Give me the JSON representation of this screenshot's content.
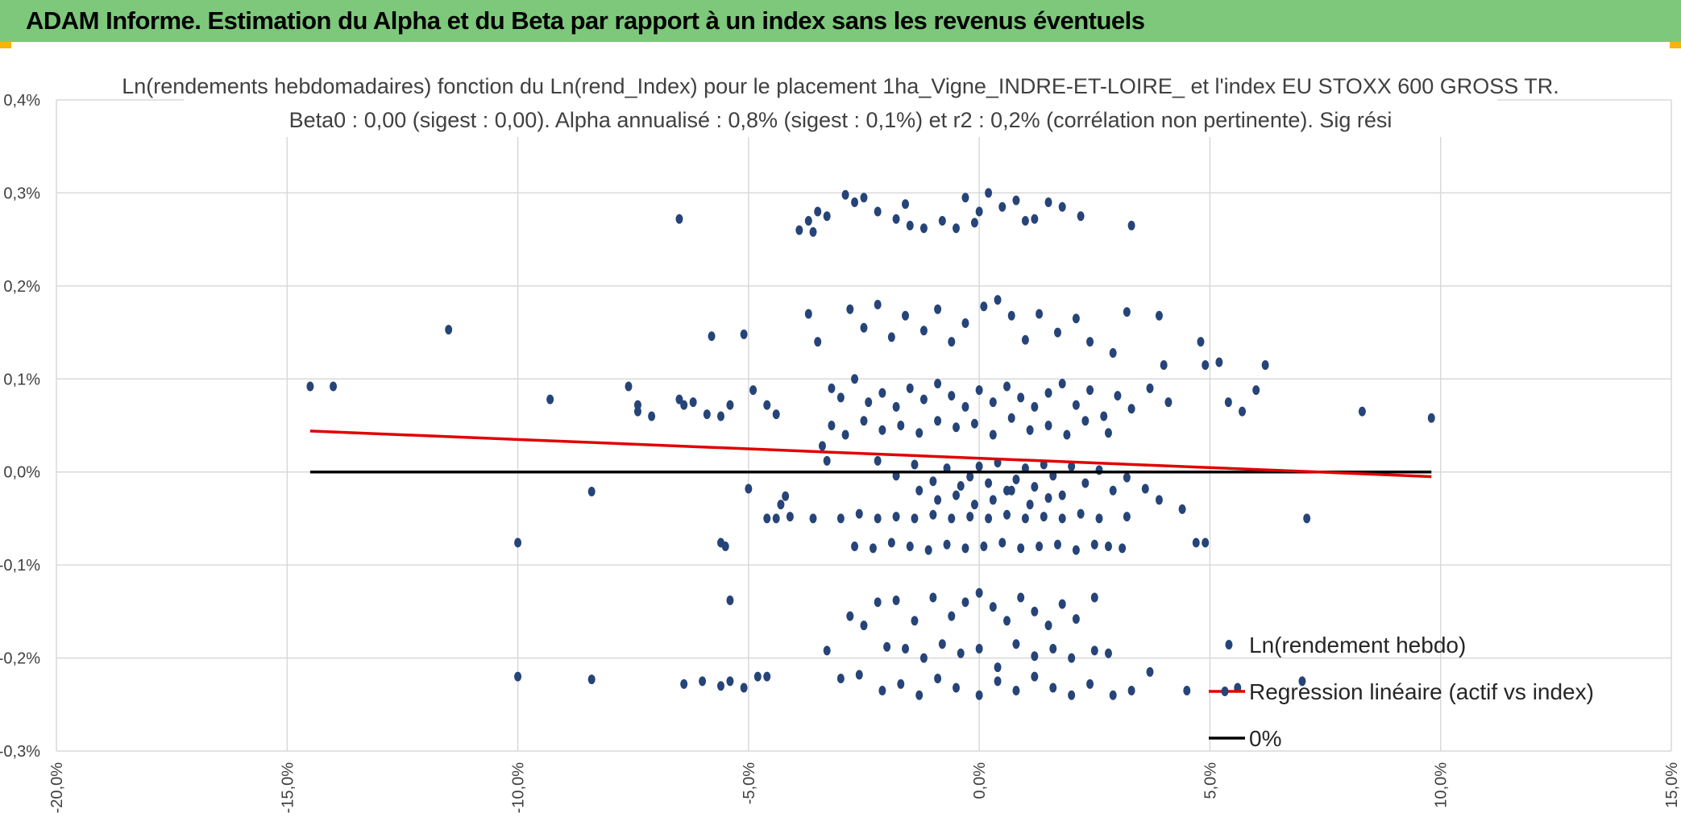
{
  "header": {
    "title": "ADAM Informe. Estimation du Alpha et du Beta par rapport à un index sans les revenus éventuels"
  },
  "colors": {
    "header_bg": "#7dc87b",
    "points": "#264478",
    "regression": "#e00000",
    "zero_line": "#000000",
    "accent_corner": "#f2b705"
  },
  "chart_data": {
    "type": "scatter",
    "title": "Ln(rendements hebdomadaires) fonction du Ln(rend_Index) pour le placement 1ha_Vigne_INDRE-ET-LOIRE_ et l'index EU STOXX 600 GROSS TR.",
    "subtitle": "Beta0 : 0,00 (sigest : 0,00). Alpha annualisé : 0,8% (sigest : 0,1%) et r2 : 0,2% (corrélation non pertinente). Sig rési",
    "xlabel": "",
    "ylabel": "",
    "xlim": [
      -20,
      15
    ],
    "ylim": [
      -0.3,
      0.4
    ],
    "x_ticks": [
      -20,
      -15,
      -10,
      -5,
      0,
      5,
      10,
      15
    ],
    "x_tick_labels": [
      "-20,0%",
      "-15,0%",
      "-10,0%",
      "-5,0%",
      "0,0%",
      "5,0%",
      "10,0%",
      "15,0%"
    ],
    "y_ticks": [
      0.4,
      0.3,
      0.2,
      0.1,
      0.0,
      -0.1,
      -0.2,
      -0.3
    ],
    "y_tick_labels": [
      "0,4%",
      "0,3%",
      "0,2%",
      "0,1%",
      "0,0%",
      "-0,1%",
      "-0,2%",
      "-0,3%"
    ],
    "grid": true,
    "legend_position": "bottom-right",
    "series": [
      {
        "name": "Ln(rendement hebdo)",
        "kind": "scatter",
        "points": [
          [
            -14.5,
            0.092
          ],
          [
            -14.0,
            0.092
          ],
          [
            -11.5,
            0.153
          ],
          [
            -9.3,
            0.078
          ],
          [
            -10.0,
            -0.076
          ],
          [
            -8.4,
            -0.021
          ],
          [
            -8.4,
            -0.223
          ],
          [
            -10.0,
            -0.22
          ],
          [
            -7.6,
            0.092
          ],
          [
            -7.4,
            0.072
          ],
          [
            -7.4,
            0.065
          ],
          [
            -7.1,
            0.06
          ],
          [
            -6.5,
            0.272
          ],
          [
            -6.5,
            0.078
          ],
          [
            -6.4,
            0.072
          ],
          [
            -6.2,
            0.075
          ],
          [
            -5.9,
            0.062
          ],
          [
            -5.8,
            0.146
          ],
          [
            -5.6,
            0.06
          ],
          [
            -5.4,
            0.072
          ],
          [
            -5.1,
            0.148
          ],
          [
            -5.0,
            -0.018
          ],
          [
            -5.6,
            -0.076
          ],
          [
            -5.5,
            -0.08
          ],
          [
            -5.4,
            -0.138
          ],
          [
            -6.4,
            -0.228
          ],
          [
            -6.0,
            -0.225
          ],
          [
            -5.6,
            -0.23
          ],
          [
            -5.4,
            -0.225
          ],
          [
            -5.1,
            -0.232
          ],
          [
            -4.8,
            -0.22
          ],
          [
            -4.6,
            -0.22
          ],
          [
            -4.9,
            0.088
          ],
          [
            -4.6,
            0.072
          ],
          [
            -4.4,
            0.062
          ],
          [
            -4.3,
            -0.035
          ],
          [
            -4.4,
            -0.05
          ],
          [
            -3.9,
            0.26
          ],
          [
            -3.7,
            0.27
          ],
          [
            -3.5,
            0.28
          ],
          [
            -3.6,
            0.258
          ],
          [
            -3.3,
            0.275
          ],
          [
            -2.9,
            0.298
          ],
          [
            -2.7,
            0.29
          ],
          [
            -2.5,
            0.295
          ],
          [
            -2.2,
            0.28
          ],
          [
            -1.8,
            0.272
          ],
          [
            -1.5,
            0.265
          ],
          [
            -1.2,
            0.262
          ],
          [
            -0.8,
            0.27
          ],
          [
            -0.5,
            0.262
          ],
          [
            -0.3,
            0.295
          ],
          [
            0.0,
            0.28
          ],
          [
            0.2,
            0.3
          ],
          [
            0.5,
            0.285
          ],
          [
            0.8,
            0.292
          ],
          [
            1.2,
            0.272
          ],
          [
            1.5,
            0.29
          ],
          [
            1.8,
            0.285
          ],
          [
            2.2,
            0.275
          ],
          [
            3.3,
            0.265
          ],
          [
            -1.6,
            0.288
          ],
          [
            -0.1,
            0.268
          ],
          [
            1.0,
            0.27
          ],
          [
            -3.7,
            0.17
          ],
          [
            -3.5,
            0.14
          ],
          [
            -3.2,
            0.09
          ],
          [
            -2.8,
            0.175
          ],
          [
            -2.5,
            0.155
          ],
          [
            -2.2,
            0.18
          ],
          [
            -1.9,
            0.145
          ],
          [
            -1.6,
            0.168
          ],
          [
            -1.2,
            0.152
          ],
          [
            -0.9,
            0.175
          ],
          [
            -0.6,
            0.14
          ],
          [
            -0.3,
            0.16
          ],
          [
            0.1,
            0.178
          ],
          [
            0.4,
            0.185
          ],
          [
            0.7,
            0.168
          ],
          [
            1.0,
            0.142
          ],
          [
            1.3,
            0.17
          ],
          [
            1.7,
            0.15
          ],
          [
            2.1,
            0.165
          ],
          [
            2.4,
            0.14
          ],
          [
            2.9,
            0.128
          ],
          [
            3.2,
            0.172
          ],
          [
            3.9,
            0.168
          ],
          [
            4.0,
            0.115
          ],
          [
            -3.0,
            0.08
          ],
          [
            -2.7,
            0.1
          ],
          [
            -2.4,
            0.075
          ],
          [
            -2.1,
            0.085
          ],
          [
            -1.8,
            0.07
          ],
          [
            -1.5,
            0.09
          ],
          [
            -1.2,
            0.078
          ],
          [
            -0.9,
            0.095
          ],
          [
            -0.6,
            0.082
          ],
          [
            -0.3,
            0.07
          ],
          [
            0.0,
            0.088
          ],
          [
            0.3,
            0.075
          ],
          [
            0.6,
            0.092
          ],
          [
            0.9,
            0.08
          ],
          [
            1.2,
            0.07
          ],
          [
            1.5,
            0.085
          ],
          [
            1.8,
            0.095
          ],
          [
            2.1,
            0.072
          ],
          [
            2.4,
            0.088
          ],
          [
            2.7,
            0.06
          ],
          [
            3.0,
            0.082
          ],
          [
            3.3,
            0.068
          ],
          [
            3.7,
            0.09
          ],
          [
            4.1,
            0.075
          ],
          [
            -3.2,
            0.05
          ],
          [
            -2.9,
            0.04
          ],
          [
            -2.5,
            0.055
          ],
          [
            -2.1,
            0.045
          ],
          [
            -1.7,
            0.05
          ],
          [
            -1.3,
            0.042
          ],
          [
            -0.9,
            0.055
          ],
          [
            -0.5,
            0.048
          ],
          [
            -0.1,
            0.052
          ],
          [
            0.3,
            0.04
          ],
          [
            0.7,
            0.058
          ],
          [
            1.1,
            0.045
          ],
          [
            1.5,
            0.05
          ],
          [
            1.9,
            0.04
          ],
          [
            2.3,
            0.055
          ],
          [
            2.8,
            0.042
          ],
          [
            -2.2,
            0.012
          ],
          [
            -1.8,
            -0.004
          ],
          [
            -1.4,
            0.008
          ],
          [
            -1.0,
            -0.01
          ],
          [
            -0.7,
            0.004
          ],
          [
            -0.4,
            -0.015
          ],
          [
            -0.2,
            -0.005
          ],
          [
            0.0,
            0.006
          ],
          [
            0.2,
            -0.012
          ],
          [
            0.4,
            0.01
          ],
          [
            0.6,
            -0.02
          ],
          [
            0.8,
            -0.008
          ],
          [
            1.0,
            0.004
          ],
          [
            1.2,
            -0.016
          ],
          [
            1.4,
            0.008
          ],
          [
            1.6,
            -0.004
          ],
          [
            1.8,
            -0.025
          ],
          [
            2.0,
            0.006
          ],
          [
            2.3,
            -0.012
          ],
          [
            2.6,
            0.002
          ],
          [
            2.9,
            -0.02
          ],
          [
            3.2,
            -0.006
          ],
          [
            3.6,
            -0.018
          ],
          [
            3.9,
            -0.03
          ],
          [
            -0.9,
            -0.03
          ],
          [
            -0.5,
            -0.025
          ],
          [
            -0.1,
            -0.035
          ],
          [
            0.3,
            -0.03
          ],
          [
            0.7,
            -0.02
          ],
          [
            1.1,
            -0.035
          ],
          [
            -1.3,
            -0.02
          ],
          [
            1.5,
            -0.028
          ],
          [
            -3.0,
            -0.05
          ],
          [
            -2.6,
            -0.045
          ],
          [
            -2.2,
            -0.05
          ],
          [
            -1.8,
            -0.048
          ],
          [
            -1.4,
            -0.05
          ],
          [
            -1.0,
            -0.046
          ],
          [
            -0.6,
            -0.05
          ],
          [
            -0.2,
            -0.048
          ],
          [
            0.2,
            -0.05
          ],
          [
            0.6,
            -0.046
          ],
          [
            1.0,
            -0.05
          ],
          [
            1.4,
            -0.048
          ],
          [
            1.8,
            -0.05
          ],
          [
            2.2,
            -0.045
          ],
          [
            2.6,
            -0.05
          ],
          [
            3.2,
            -0.048
          ],
          [
            -2.7,
            -0.08
          ],
          [
            -2.3,
            -0.082
          ],
          [
            -1.9,
            -0.076
          ],
          [
            -1.5,
            -0.08
          ],
          [
            -1.1,
            -0.084
          ],
          [
            -0.7,
            -0.078
          ],
          [
            -0.3,
            -0.082
          ],
          [
            0.1,
            -0.08
          ],
          [
            0.5,
            -0.076
          ],
          [
            0.9,
            -0.082
          ],
          [
            1.3,
            -0.08
          ],
          [
            1.7,
            -0.078
          ],
          [
            2.1,
            -0.084
          ],
          [
            2.5,
            -0.078
          ],
          [
            2.8,
            -0.08
          ],
          [
            3.1,
            -0.082
          ],
          [
            4.7,
            -0.076
          ],
          [
            4.9,
            -0.076
          ],
          [
            4.4,
            -0.04
          ],
          [
            4.8,
            0.14
          ],
          [
            4.9,
            0.115
          ],
          [
            5.2,
            0.118
          ],
          [
            5.4,
            0.075
          ],
          [
            5.7,
            0.065
          ],
          [
            6.0,
            0.088
          ],
          [
            6.2,
            0.115
          ],
          [
            7.1,
            -0.05
          ],
          [
            8.3,
            0.065
          ],
          [
            9.8,
            0.058
          ],
          [
            5.6,
            -0.232
          ],
          [
            7.0,
            -0.225
          ],
          [
            4.5,
            -0.235
          ],
          [
            -2.2,
            -0.14
          ],
          [
            -1.8,
            -0.138
          ],
          [
            -1.4,
            -0.16
          ],
          [
            -1.0,
            -0.135
          ],
          [
            -0.6,
            -0.155
          ],
          [
            -0.3,
            -0.14
          ],
          [
            0.0,
            -0.13
          ],
          [
            0.3,
            -0.145
          ],
          [
            0.6,
            -0.16
          ],
          [
            0.9,
            -0.135
          ],
          [
            1.2,
            -0.15
          ],
          [
            1.5,
            -0.165
          ],
          [
            1.8,
            -0.142
          ],
          [
            2.1,
            -0.158
          ],
          [
            2.5,
            -0.135
          ],
          [
            -2.8,
            -0.155
          ],
          [
            -2.5,
            -0.165
          ],
          [
            -2.0,
            -0.188
          ],
          [
            -1.6,
            -0.19
          ],
          [
            -1.2,
            -0.2
          ],
          [
            -0.8,
            -0.185
          ],
          [
            -0.4,
            -0.195
          ],
          [
            0.0,
            -0.19
          ],
          [
            0.4,
            -0.21
          ],
          [
            0.8,
            -0.185
          ],
          [
            1.2,
            -0.198
          ],
          [
            1.6,
            -0.19
          ],
          [
            2.0,
            -0.2
          ],
          [
            2.5,
            -0.192
          ],
          [
            2.8,
            -0.195
          ],
          [
            -3.3,
            -0.192
          ],
          [
            3.7,
            -0.215
          ],
          [
            -3.0,
            -0.222
          ],
          [
            -2.6,
            -0.218
          ],
          [
            -2.1,
            -0.235
          ],
          [
            -1.7,
            -0.228
          ],
          [
            -1.3,
            -0.24
          ],
          [
            -0.9,
            -0.222
          ],
          [
            -0.5,
            -0.232
          ],
          [
            0.0,
            -0.24
          ],
          [
            0.4,
            -0.225
          ],
          [
            0.8,
            -0.235
          ],
          [
            1.2,
            -0.22
          ],
          [
            1.6,
            -0.232
          ],
          [
            2.0,
            -0.24
          ],
          [
            2.4,
            -0.228
          ],
          [
            2.9,
            -0.24
          ],
          [
            3.3,
            -0.235
          ],
          [
            -3.3,
            0.012
          ],
          [
            -3.6,
            -0.05
          ],
          [
            -4.1,
            -0.048
          ],
          [
            -4.6,
            -0.05
          ],
          [
            -3.4,
            0.028
          ],
          [
            -4.2,
            -0.026
          ]
        ]
      },
      {
        "name": "Regression linéaire (actif vs index)",
        "kind": "line",
        "points": [
          [
            -14.5,
            0.044
          ],
          [
            9.8,
            -0.005
          ]
        ]
      },
      {
        "name": "0%",
        "kind": "line",
        "points": [
          [
            -14.5,
            0.0
          ],
          [
            9.8,
            0.0
          ]
        ]
      }
    ]
  }
}
